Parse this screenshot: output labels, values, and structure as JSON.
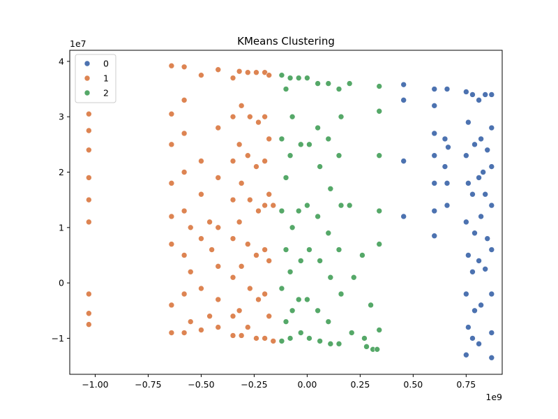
{
  "chart_data": {
    "type": "scatter",
    "title": "KMeans Clustering",
    "xlabel": "",
    "ylabel": "",
    "x_multiplier_label": "1e9",
    "y_multiplier_label": "1e7",
    "xlim": [
      -1.12,
      0.92
    ],
    "ylim": [
      -1.65,
      4.2
    ],
    "x_ticks": [
      -1.0,
      -0.75,
      -0.5,
      -0.25,
      0.0,
      0.25,
      0.5,
      0.75
    ],
    "x_tick_labels": [
      "−1.00",
      "−0.75",
      "−0.50",
      "−0.25",
      "0.00",
      "0.25",
      "0.50",
      "0.75"
    ],
    "y_ticks": [
      -1,
      0,
      1,
      2,
      3,
      4
    ],
    "y_tick_labels": [
      "−1",
      "0",
      "1",
      "2",
      "3",
      "4"
    ],
    "grid": false,
    "legend_position": "top-left",
    "series": [
      {
        "name": "0",
        "color": "#4c72b0",
        "points": [
          [
            0.455,
            3.58
          ],
          [
            0.455,
            3.3
          ],
          [
            0.455,
            2.2
          ],
          [
            0.455,
            1.2
          ],
          [
            0.6,
            3.5
          ],
          [
            0.6,
            3.2
          ],
          [
            0.6,
            2.7
          ],
          [
            0.6,
            2.3
          ],
          [
            0.6,
            1.8
          ],
          [
            0.6,
            1.3
          ],
          [
            0.6,
            0.85
          ],
          [
            0.66,
            3.5
          ],
          [
            0.65,
            2.6
          ],
          [
            0.65,
            2.1
          ],
          [
            0.66,
            1.8
          ],
          [
            0.66,
            1.4
          ],
          [
            0.665,
            2.45
          ],
          [
            0.75,
            3.45
          ],
          [
            0.76,
            2.9
          ],
          [
            0.75,
            2.3
          ],
          [
            0.76,
            1.8
          ],
          [
            0.75,
            1.1
          ],
          [
            0.76,
            0.5
          ],
          [
            0.75,
            -0.2
          ],
          [
            0.76,
            -0.8
          ],
          [
            0.75,
            -1.3
          ],
          [
            0.78,
            3.4
          ],
          [
            0.79,
            2.5
          ],
          [
            0.78,
            1.6
          ],
          [
            0.79,
            0.9
          ],
          [
            0.78,
            0.2
          ],
          [
            0.79,
            -0.5
          ],
          [
            0.78,
            -1.0
          ],
          [
            0.81,
            3.3
          ],
          [
            0.82,
            2.6
          ],
          [
            0.81,
            1.9
          ],
          [
            0.82,
            1.2
          ],
          [
            0.81,
            0.4
          ],
          [
            0.82,
            -0.4
          ],
          [
            0.81,
            -1.1
          ],
          [
            0.84,
            3.4
          ],
          [
            0.85,
            2.4
          ],
          [
            0.84,
            1.6
          ],
          [
            0.85,
            0.8
          ],
          [
            0.84,
            0.25
          ],
          [
            0.83,
            2.0
          ],
          [
            0.87,
            3.4
          ],
          [
            0.87,
            2.8
          ],
          [
            0.87,
            2.1
          ],
          [
            0.87,
            1.4
          ],
          [
            0.87,
            0.6
          ],
          [
            0.87,
            -0.2
          ],
          [
            0.87,
            -0.9
          ],
          [
            0.87,
            -1.35
          ]
        ]
      },
      {
        "name": "1",
        "color": "#dd8452",
        "points": [
          [
            -1.03,
            3.05
          ],
          [
            -1.03,
            2.75
          ],
          [
            -1.03,
            2.4
          ],
          [
            -1.03,
            1.9
          ],
          [
            -1.03,
            1.5
          ],
          [
            -1.03,
            1.1
          ],
          [
            -1.03,
            -0.2
          ],
          [
            -1.03,
            -0.55
          ],
          [
            -1.03,
            -0.75
          ],
          [
            -0.64,
            3.92
          ],
          [
            -0.64,
            3.05
          ],
          [
            -0.64,
            2.5
          ],
          [
            -0.64,
            1.8
          ],
          [
            -0.64,
            1.2
          ],
          [
            -0.64,
            0.7
          ],
          [
            -0.64,
            -0.4
          ],
          [
            -0.64,
            -0.9
          ],
          [
            -0.58,
            3.9
          ],
          [
            -0.58,
            3.3
          ],
          [
            -0.58,
            2.7
          ],
          [
            -0.58,
            2.0
          ],
          [
            -0.58,
            1.3
          ],
          [
            -0.58,
            0.5
          ],
          [
            -0.58,
            -0.2
          ],
          [
            -0.58,
            -0.9
          ],
          [
            -0.55,
            1.0
          ],
          [
            -0.55,
            0.2
          ],
          [
            -0.55,
            -0.7
          ],
          [
            -0.5,
            3.75
          ],
          [
            -0.5,
            2.2
          ],
          [
            -0.5,
            1.6
          ],
          [
            -0.5,
            0.8
          ],
          [
            -0.5,
            -0.1
          ],
          [
            -0.5,
            -0.85
          ],
          [
            -0.46,
            1.1
          ],
          [
            -0.45,
            0.6
          ],
          [
            -0.46,
            -0.6
          ],
          [
            -0.42,
            3.85
          ],
          [
            -0.42,
            2.8
          ],
          [
            -0.42,
            1.9
          ],
          [
            -0.42,
            1.0
          ],
          [
            -0.42,
            0.3
          ],
          [
            -0.42,
            -0.3
          ],
          [
            -0.42,
            -0.8
          ],
          [
            -0.35,
            3.7
          ],
          [
            -0.35,
            3.0
          ],
          [
            -0.35,
            2.2
          ],
          [
            -0.35,
            1.5
          ],
          [
            -0.35,
            0.8
          ],
          [
            -0.35,
            0.1
          ],
          [
            -0.35,
            -0.6
          ],
          [
            -0.35,
            -0.95
          ],
          [
            -0.32,
            3.82
          ],
          [
            -0.31,
            3.2
          ],
          [
            -0.32,
            2.5
          ],
          [
            -0.31,
            1.8
          ],
          [
            -0.32,
            1.1
          ],
          [
            -0.31,
            0.3
          ],
          [
            -0.32,
            -0.5
          ],
          [
            -0.31,
            -0.95
          ],
          [
            -0.28,
            3.8
          ],
          [
            -0.27,
            3.0
          ],
          [
            -0.28,
            2.3
          ],
          [
            -0.27,
            1.5
          ],
          [
            -0.28,
            0.7
          ],
          [
            -0.27,
            -0.1
          ],
          [
            -0.28,
            -0.8
          ],
          [
            -0.24,
            3.8
          ],
          [
            -0.23,
            2.9
          ],
          [
            -0.24,
            2.1
          ],
          [
            -0.23,
            1.3
          ],
          [
            -0.24,
            0.5
          ],
          [
            -0.23,
            -0.3
          ],
          [
            -0.24,
            -1.0
          ],
          [
            -0.2,
            3.8
          ],
          [
            -0.2,
            3.0
          ],
          [
            -0.2,
            2.2
          ],
          [
            -0.2,
            1.4
          ],
          [
            -0.2,
            0.6
          ],
          [
            -0.2,
            -0.2
          ],
          [
            -0.2,
            -1.0
          ],
          [
            -0.18,
            3.75
          ],
          [
            -0.18,
            2.6
          ],
          [
            -0.18,
            1.6
          ],
          [
            -0.18,
            0.4
          ],
          [
            -0.18,
            -0.6
          ],
          [
            -0.16,
            1.4
          ],
          [
            -0.16,
            -1.05
          ]
        ]
      },
      {
        "name": "2",
        "color": "#55a868",
        "points": [
          [
            -0.12,
            3.75
          ],
          [
            -0.1,
            3.5
          ],
          [
            -0.12,
            2.6
          ],
          [
            -0.1,
            1.9
          ],
          [
            -0.12,
            1.3
          ],
          [
            -0.1,
            0.6
          ],
          [
            -0.12,
            -0.1
          ],
          [
            -0.1,
            -0.7
          ],
          [
            -0.12,
            -1.05
          ],
          [
            -0.08,
            3.7
          ],
          [
            -0.07,
            3.0
          ],
          [
            -0.08,
            2.3
          ],
          [
            -0.07,
            1.0
          ],
          [
            -0.08,
            0.2
          ],
          [
            -0.07,
            -0.5
          ],
          [
            -0.08,
            -1.0
          ],
          [
            -0.04,
            3.7
          ],
          [
            -0.03,
            2.5
          ],
          [
            -0.04,
            1.3
          ],
          [
            -0.03,
            0.4
          ],
          [
            -0.04,
            -0.3
          ],
          [
            -0.03,
            -0.9
          ],
          [
            0.0,
            3.7
          ],
          [
            0.01,
            2.5
          ],
          [
            0.0,
            1.4
          ],
          [
            0.01,
            0.6
          ],
          [
            0.0,
            -0.3
          ],
          [
            0.01,
            -1.0
          ],
          [
            0.05,
            3.6
          ],
          [
            0.05,
            2.8
          ],
          [
            0.06,
            2.1
          ],
          [
            0.05,
            1.2
          ],
          [
            0.06,
            0.4
          ],
          [
            0.05,
            -0.5
          ],
          [
            0.06,
            -1.05
          ],
          [
            0.1,
            3.6
          ],
          [
            0.1,
            2.6
          ],
          [
            0.11,
            1.7
          ],
          [
            0.1,
            0.9
          ],
          [
            0.11,
            0.1
          ],
          [
            0.1,
            -0.7
          ],
          [
            0.11,
            -1.1
          ],
          [
            0.15,
            3.5
          ],
          [
            0.16,
            3.0
          ],
          [
            0.15,
            2.3
          ],
          [
            0.16,
            1.4
          ],
          [
            0.15,
            0.6
          ],
          [
            0.16,
            -0.2
          ],
          [
            0.15,
            -1.1
          ],
          [
            0.2,
            1.4
          ],
          [
            0.22,
            0.1
          ],
          [
            0.21,
            -0.9
          ],
          [
            0.2,
            3.6
          ],
          [
            0.26,
            0.5
          ],
          [
            0.27,
            -1.0
          ],
          [
            0.28,
            -1.15
          ],
          [
            0.3,
            -0.4
          ],
          [
            0.31,
            -1.2
          ],
          [
            0.34,
            3.55
          ],
          [
            0.34,
            3.1
          ],
          [
            0.34,
            2.3
          ],
          [
            0.34,
            1.3
          ],
          [
            0.34,
            0.7
          ],
          [
            0.34,
            -0.85
          ],
          [
            0.33,
            -1.2
          ]
        ]
      }
    ]
  }
}
